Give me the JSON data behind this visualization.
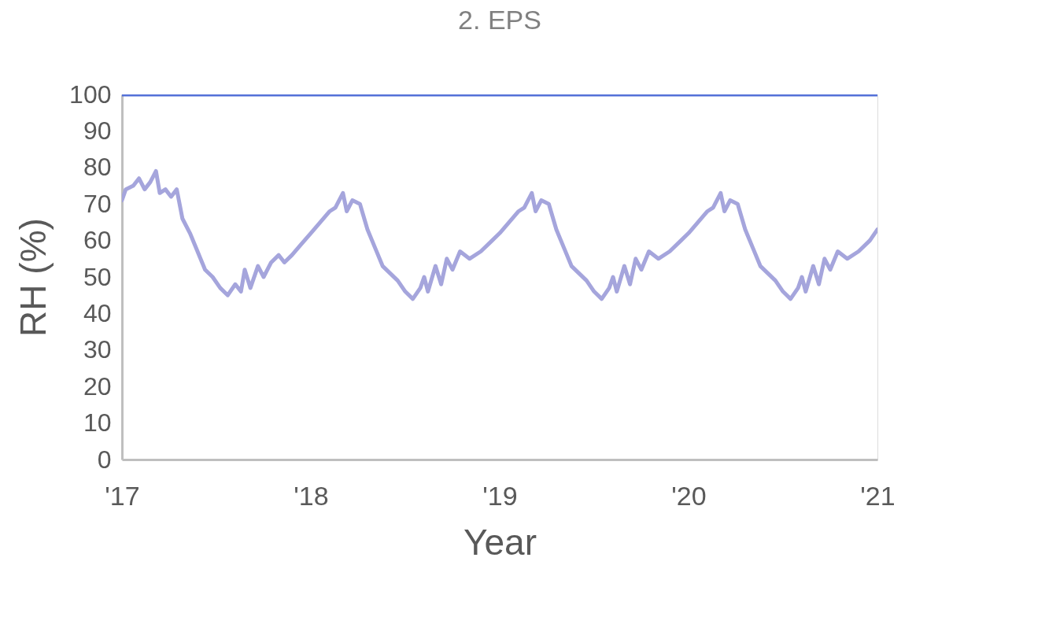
{
  "chart_data": {
    "type": "line",
    "title": "2. EPS",
    "xlabel": "Year",
    "ylabel": "RH (%)",
    "xlim": [
      2017,
      2021
    ],
    "xticks": [
      {
        "value": 2017,
        "label": "'17"
      },
      {
        "value": 2018,
        "label": "'18"
      },
      {
        "value": 2019,
        "label": "'19"
      },
      {
        "value": 2020,
        "label": "'20"
      },
      {
        "value": 2021,
        "label": "'21"
      }
    ],
    "ylim": [
      0,
      100
    ],
    "yticks": [
      0,
      10,
      20,
      30,
      40,
      50,
      60,
      70,
      80,
      90,
      100
    ],
    "grid": false,
    "legend": false,
    "marker": "none",
    "line_style": "solid",
    "series": [
      {
        "color": "#5470d8",
        "x": [
          2017,
          2021
        ],
        "values": [
          100,
          100
        ]
      },
      {
        "color": "#a5a5dc",
        "x": [
          2017.0,
          2017.02,
          2017.06,
          2017.09,
          2017.12,
          2017.15,
          2017.18,
          2017.2,
          2017.23,
          2017.26,
          2017.29,
          2017.32,
          2017.36,
          2017.4,
          2017.44,
          2017.48,
          2017.52,
          2017.56,
          2017.6,
          2017.63,
          2017.65,
          2017.68,
          2017.72,
          2017.75,
          2017.79,
          2017.83,
          2017.86,
          2017.9,
          2017.95,
          2018.0,
          2018.05,
          2018.1,
          2018.13,
          2018.17,
          2018.19,
          2018.22,
          2018.26,
          2018.3,
          2018.34,
          2018.38,
          2018.42,
          2018.46,
          2018.5,
          2018.54,
          2018.58,
          2018.6,
          2018.62,
          2018.66,
          2018.69,
          2018.72,
          2018.75,
          2018.79,
          2018.84,
          2018.9,
          2018.96,
          2019.0,
          2019.05,
          2019.1,
          2019.13,
          2019.17,
          2019.19,
          2019.22,
          2019.26,
          2019.3,
          2019.34,
          2019.38,
          2019.42,
          2019.46,
          2019.5,
          2019.54,
          2019.58,
          2019.6,
          2019.62,
          2019.66,
          2019.69,
          2019.72,
          2019.75,
          2019.79,
          2019.84,
          2019.9,
          2019.96,
          2020.0,
          2020.05,
          2020.1,
          2020.13,
          2020.17,
          2020.19,
          2020.22,
          2020.26,
          2020.3,
          2020.34,
          2020.38,
          2020.42,
          2020.46,
          2020.5,
          2020.54,
          2020.58,
          2020.6,
          2020.62,
          2020.66,
          2020.69,
          2020.72,
          2020.75,
          2020.79,
          2020.84,
          2020.9,
          2020.96,
          2021.0
        ],
        "values": [
          71,
          74,
          75,
          77,
          74,
          76,
          79,
          73,
          74,
          72,
          74,
          66,
          62,
          57,
          52,
          50,
          47,
          45,
          48,
          46,
          52,
          47,
          53,
          50,
          54,
          56,
          54,
          56,
          59,
          62,
          65,
          68,
          69,
          73,
          68,
          71,
          70,
          63,
          58,
          53,
          51,
          49,
          46,
          44,
          47,
          50,
          46,
          53,
          48,
          55,
          52,
          57,
          55,
          57,
          60,
          62,
          65,
          68,
          69,
          73,
          68,
          71,
          70,
          63,
          58,
          53,
          51,
          49,
          46,
          44,
          47,
          50,
          46,
          53,
          48,
          55,
          52,
          57,
          55,
          57,
          60,
          62,
          65,
          68,
          69,
          73,
          68,
          71,
          70,
          63,
          58,
          53,
          51,
          49,
          46,
          44,
          47,
          50,
          46,
          53,
          48,
          55,
          52,
          57,
          55,
          57,
          60,
          63
        ]
      }
    ]
  }
}
